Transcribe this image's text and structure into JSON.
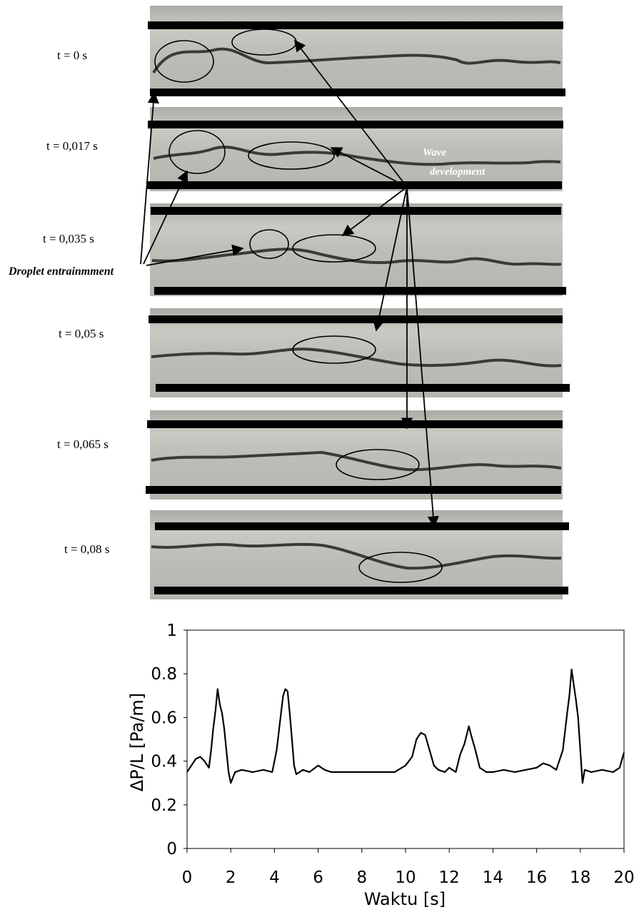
{
  "frames": [
    {
      "time": "t = 0 s"
    },
    {
      "time": "t = 0,017 s"
    },
    {
      "time": "t = 0,035 s"
    },
    {
      "time": "t = 0,05 s"
    },
    {
      "time": "t = 0,065 s"
    },
    {
      "time": "t = 0,08 s"
    }
  ],
  "annotations": {
    "droplet": "Droplet entrainmment",
    "wave_line1": "Wave",
    "wave_line2": "development"
  },
  "colors": {
    "photo_bg": "#b9bcb4",
    "pipe_wall": "#000000",
    "plot_line": "#000000"
  },
  "chart_data": {
    "type": "line",
    "title": "",
    "xlabel": "Waktu [s]",
    "ylabel": "ΔP/L [Pa/m]",
    "xlim": [
      0,
      20
    ],
    "ylim": [
      0,
      1
    ],
    "xticks": [
      "0",
      "2",
      "4",
      "6",
      "8",
      "10",
      "12",
      "14",
      "16",
      "18",
      "20"
    ],
    "yticks": [
      "0",
      "0.2",
      "0.4",
      "0.6",
      "0.8",
      "1"
    ],
    "grid": false,
    "series": [
      {
        "x": [
          0,
          0.2,
          0.4,
          0.6,
          0.8,
          1.0,
          1.1,
          1.2,
          1.3,
          1.4,
          1.5,
          1.6,
          1.7,
          1.8,
          1.9,
          2.0,
          2.2,
          2.5,
          3.0,
          3.5,
          3.9,
          4.1,
          4.3,
          4.4,
          4.5,
          4.6,
          4.7,
          4.8,
          4.9,
          5.0,
          5.3,
          5.6,
          6.0,
          6.3,
          6.6,
          7.0,
          7.5,
          8.0,
          8.5,
          9.0,
          9.5,
          10.0,
          10.3,
          10.5,
          10.7,
          10.9,
          11.1,
          11.3,
          11.5,
          11.8,
          12.0,
          12.3,
          12.5,
          12.7,
          12.9,
          13.0,
          13.2,
          13.4,
          13.7,
          14.0,
          14.5,
          15.0,
          15.5,
          16.0,
          16.3,
          16.6,
          16.9,
          17.2,
          17.4,
          17.5,
          17.6,
          17.7,
          17.8,
          17.9,
          18.0,
          18.1,
          18.2,
          18.5,
          19.0,
          19.5,
          19.8,
          20.0
        ],
        "values": [
          0.35,
          0.38,
          0.41,
          0.42,
          0.4,
          0.37,
          0.45,
          0.55,
          0.63,
          0.73,
          0.66,
          0.62,
          0.55,
          0.45,
          0.35,
          0.3,
          0.35,
          0.36,
          0.35,
          0.36,
          0.35,
          0.45,
          0.62,
          0.7,
          0.73,
          0.72,
          0.62,
          0.5,
          0.38,
          0.34,
          0.36,
          0.35,
          0.38,
          0.36,
          0.35,
          0.35,
          0.35,
          0.35,
          0.35,
          0.35,
          0.35,
          0.38,
          0.42,
          0.5,
          0.53,
          0.52,
          0.45,
          0.38,
          0.36,
          0.35,
          0.37,
          0.35,
          0.43,
          0.48,
          0.56,
          0.52,
          0.45,
          0.37,
          0.35,
          0.35,
          0.36,
          0.35,
          0.36,
          0.37,
          0.39,
          0.38,
          0.36,
          0.45,
          0.62,
          0.7,
          0.82,
          0.75,
          0.68,
          0.6,
          0.45,
          0.3,
          0.36,
          0.35,
          0.36,
          0.35,
          0.37,
          0.44
        ]
      }
    ]
  }
}
